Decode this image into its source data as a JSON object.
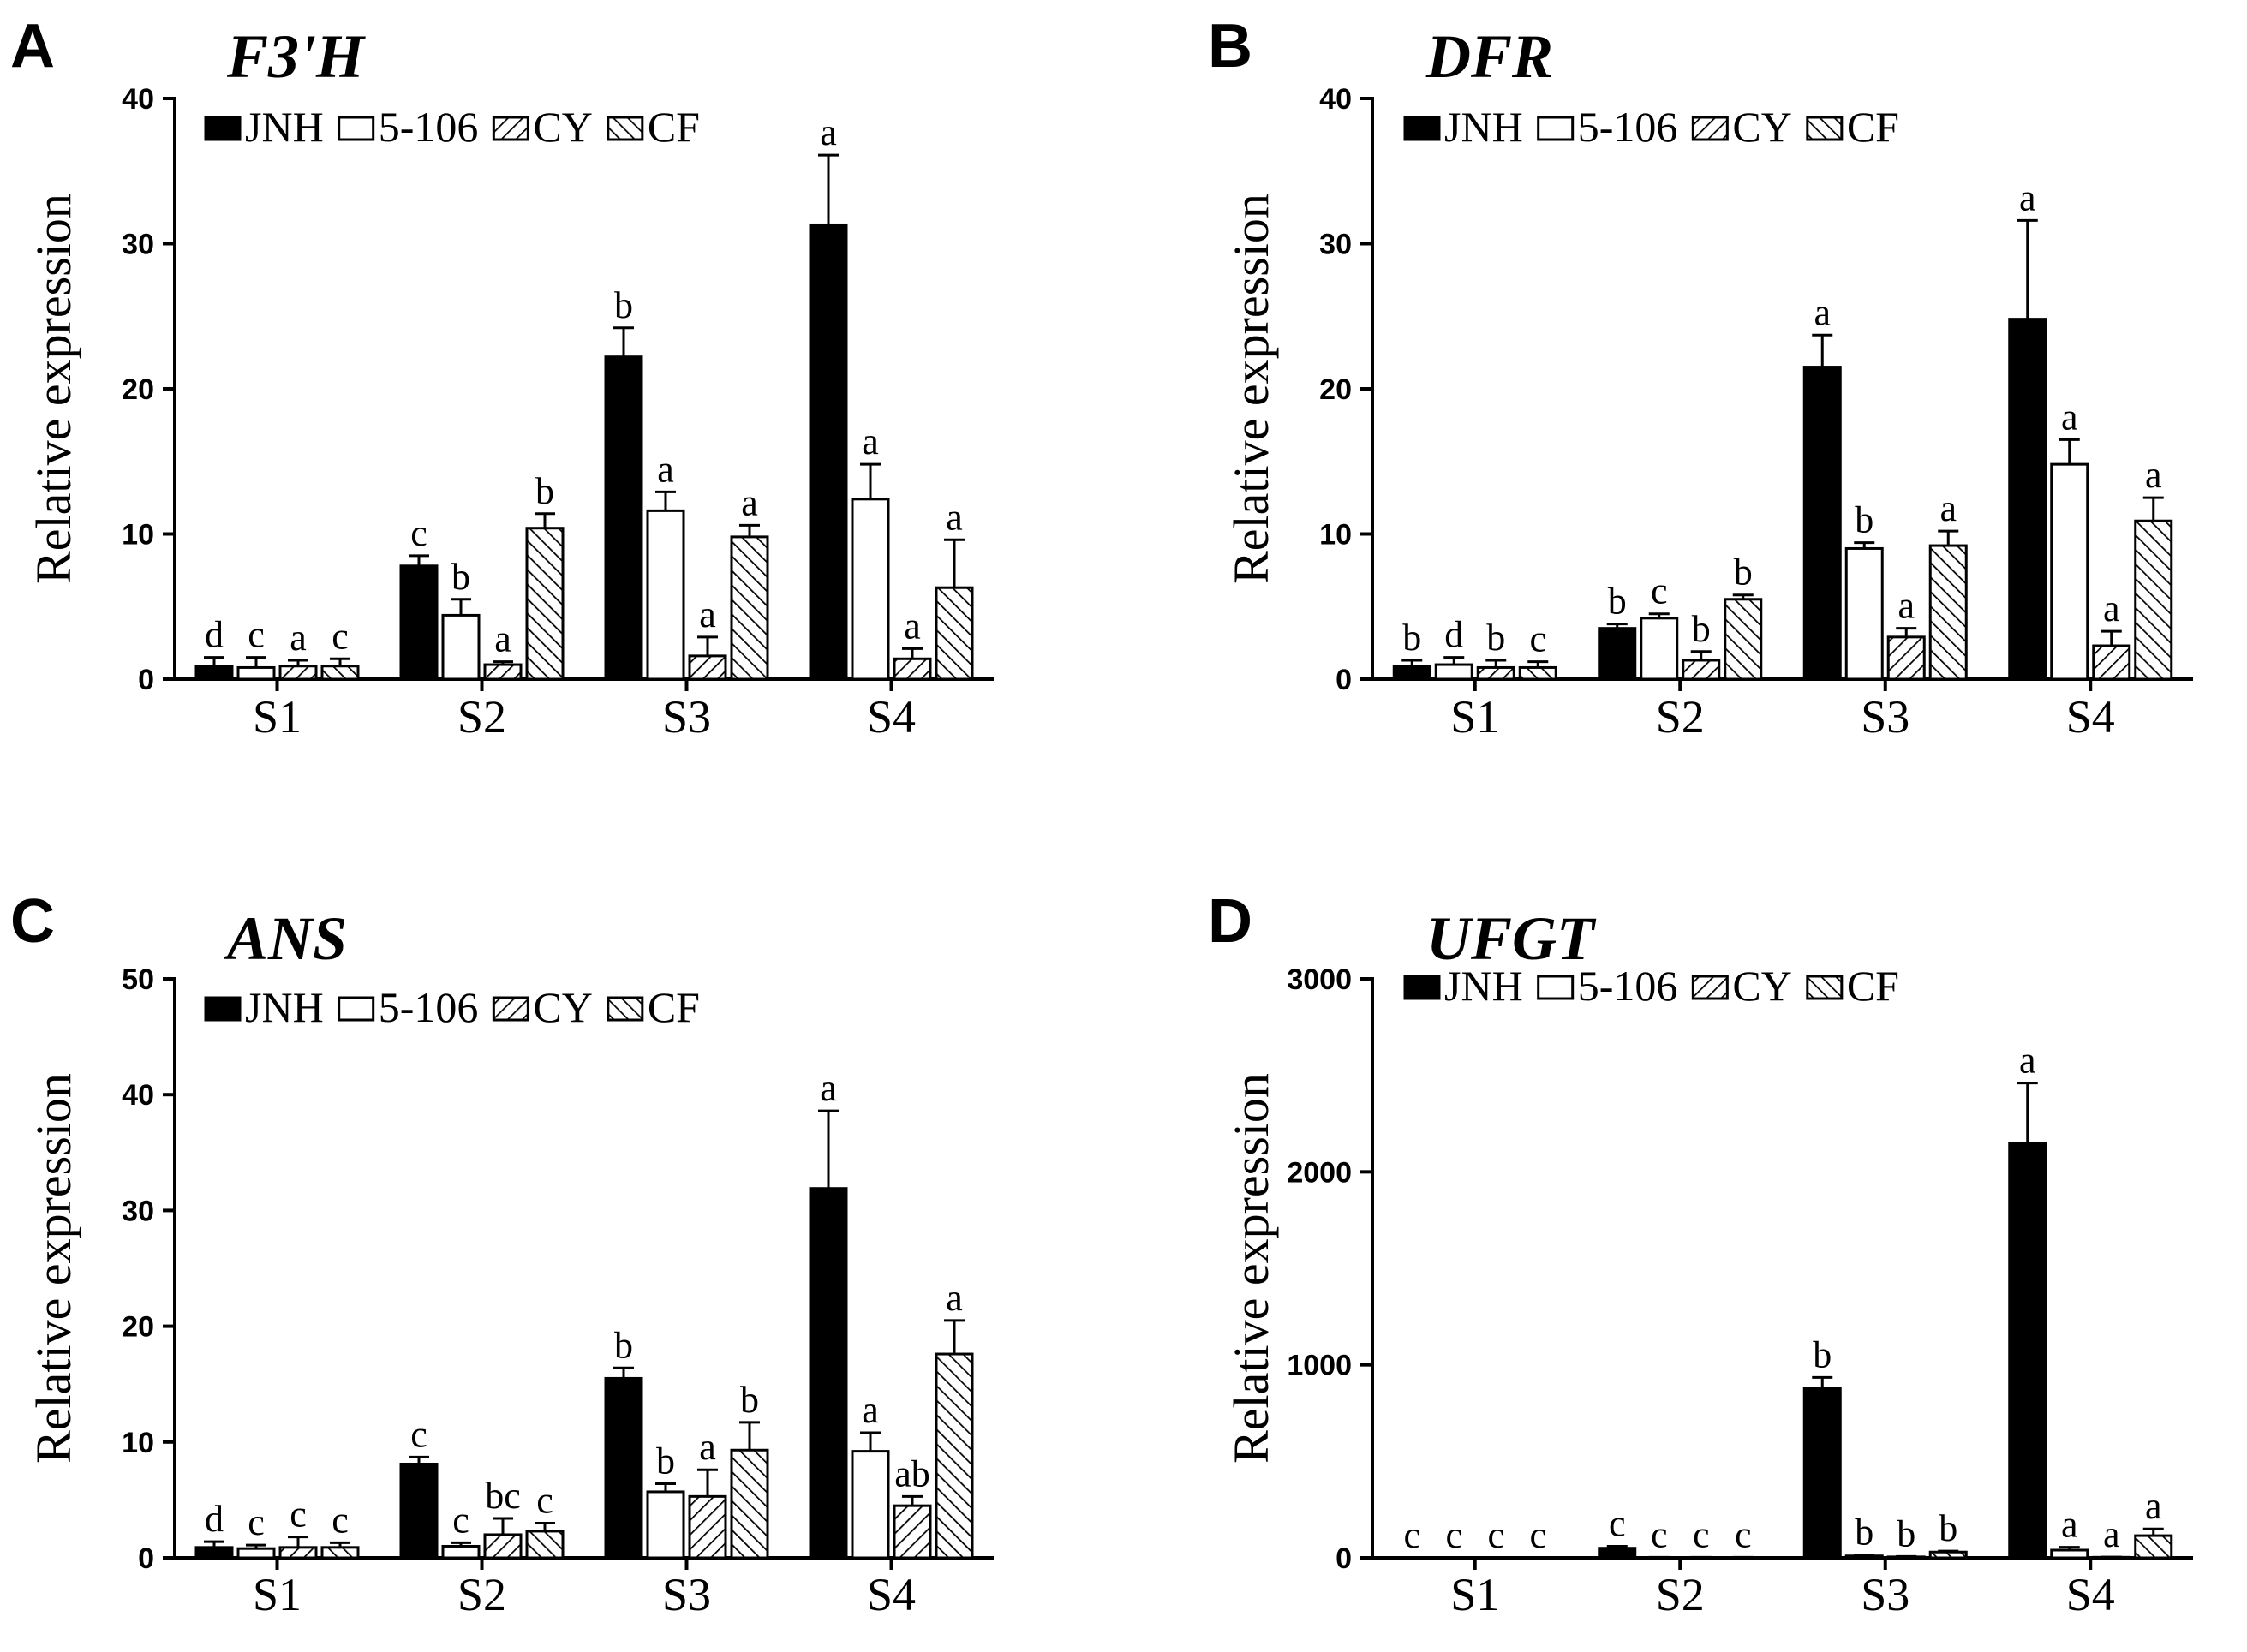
{
  "chart_data": [
    {
      "type": "bar",
      "panel": "A",
      "title": "F3'H",
      "ylabel": "Relative expression",
      "xlabel": "",
      "ylim": [
        0,
        40
      ],
      "yticks": [
        0,
        10,
        20,
        30,
        40
      ],
      "ytick_labels": [
        "0",
        "10",
        "20",
        "30",
        "40"
      ],
      "legend_position": "top-left",
      "categories": [
        "S1",
        "S2",
        "S3",
        "S4"
      ],
      "series": [
        {
          "name": "JNH",
          "values": [
            0.9,
            7.8,
            22.2,
            31.3
          ],
          "errors": [
            0.6,
            0.7,
            2.0,
            4.8
          ],
          "labels": [
            "d",
            "c",
            "b",
            "a"
          ]
        },
        {
          "name": "5-106",
          "values": [
            0.8,
            4.4,
            11.6,
            12.4
          ],
          "errors": [
            0.7,
            1.1,
            1.3,
            2.4
          ],
          "labels": [
            "c",
            "b",
            "a",
            "a"
          ]
        },
        {
          "name": "CY",
          "values": [
            0.9,
            1.0,
            1.6,
            1.4
          ],
          "errors": [
            0.4,
            0.2,
            1.3,
            0.7
          ],
          "labels": [
            "a",
            "a",
            "a",
            "a"
          ]
        },
        {
          "name": "CF",
          "values": [
            0.9,
            10.4,
            9.8,
            6.3
          ],
          "errors": [
            0.5,
            1.0,
            0.8,
            3.3
          ],
          "labels": [
            "c",
            "b",
            "a",
            "a"
          ]
        }
      ]
    },
    {
      "type": "bar",
      "panel": "B",
      "title": "DFR",
      "ylabel": "Relative expression",
      "xlabel": "",
      "ylim": [
        0,
        40
      ],
      "yticks": [
        0,
        10,
        20,
        30,
        40
      ],
      "ytick_labels": [
        "0",
        "10",
        "20",
        "30",
        "40"
      ],
      "legend_position": "top-left",
      "categories": [
        "S1",
        "S2",
        "S3",
        "S4"
      ],
      "series": [
        {
          "name": "JNH",
          "values": [
            0.9,
            3.5,
            21.5,
            24.8
          ],
          "errors": [
            0.4,
            0.3,
            2.2,
            6.8
          ],
          "labels": [
            "b",
            "b",
            "a",
            "a"
          ]
        },
        {
          "name": "5-106",
          "values": [
            1.0,
            4.2,
            9.0,
            14.8
          ],
          "errors": [
            0.5,
            0.3,
            0.4,
            1.7
          ],
          "labels": [
            "d",
            "c",
            "b",
            "a"
          ]
        },
        {
          "name": "CY",
          "values": [
            0.8,
            1.3,
            2.9,
            2.3
          ],
          "errors": [
            0.5,
            0.6,
            0.6,
            1.0
          ],
          "labels": [
            "b",
            "b",
            "a",
            "a"
          ]
        },
        {
          "name": "CF",
          "values": [
            0.8,
            5.5,
            9.2,
            10.9
          ],
          "errors": [
            0.4,
            0.3,
            1.0,
            1.6
          ],
          "labels": [
            "c",
            "b",
            "a",
            "a"
          ]
        }
      ]
    },
    {
      "type": "bar",
      "panel": "C",
      "title": "ANS",
      "ylabel": "Relative expression",
      "xlabel": "",
      "ylim": [
        0,
        50
      ],
      "yticks": [
        0,
        10,
        20,
        30,
        40,
        50
      ],
      "ytick_labels": [
        "0",
        "10",
        "20",
        "30",
        "40",
        "50"
      ],
      "legend_position": "top-left",
      "categories": [
        "S1",
        "S2",
        "S3",
        "S4"
      ],
      "series": [
        {
          "name": "JNH",
          "values": [
            0.9,
            8.1,
            15.5,
            31.9
          ],
          "errors": [
            0.5,
            0.6,
            0.9,
            6.7
          ],
          "labels": [
            "d",
            "c",
            "b",
            "a"
          ]
        },
        {
          "name": "5-106",
          "values": [
            0.8,
            1.0,
            5.7,
            9.2
          ],
          "errors": [
            0.3,
            0.3,
            0.7,
            1.6
          ],
          "labels": [
            "c",
            "c",
            "b",
            "a"
          ]
        },
        {
          "name": "CY",
          "values": [
            0.9,
            2.0,
            5.3,
            4.5
          ],
          "errors": [
            0.9,
            1.4,
            2.3,
            0.8
          ],
          "labels": [
            "c",
            "bc",
            "a",
            "ab"
          ]
        },
        {
          "name": "CF",
          "values": [
            0.9,
            2.3,
            9.3,
            17.6
          ],
          "errors": [
            0.4,
            0.7,
            2.4,
            2.9
          ],
          "labels": [
            "c",
            "c",
            "b",
            "a"
          ]
        }
      ]
    },
    {
      "type": "bar",
      "panel": "D",
      "title": "UFGT",
      "ylabel": "Relative expression",
      "xlabel": "",
      "ylim": [
        0,
        3000
      ],
      "yticks": [
        0,
        1000,
        2000,
        3000
      ],
      "ytick_labels": [
        "0",
        "1000",
        "2000",
        "3000"
      ],
      "legend_position": "top-left",
      "categories": [
        "S1",
        "S2",
        "S3",
        "S4"
      ],
      "series": [
        {
          "name": "JNH",
          "values": [
            1,
            50,
            880,
            2150
          ],
          "errors": [
            0,
            10,
            55,
            310
          ],
          "labels": [
            "c",
            "c",
            "b",
            "a"
          ]
        },
        {
          "name": "5-106",
          "values": [
            1,
            2,
            10,
            40
          ],
          "errors": [
            0,
            1,
            5,
            15
          ],
          "labels": [
            "c",
            "c",
            "b",
            "a"
          ]
        },
        {
          "name": "CY",
          "values": [
            1,
            2,
            5,
            3
          ],
          "errors": [
            0,
            1,
            2,
            1
          ],
          "labels": [
            "c",
            "c",
            "b",
            "a"
          ]
        },
        {
          "name": "CF",
          "values": [
            1,
            2,
            30,
            115
          ],
          "errors": [
            0,
            1,
            5,
            35
          ],
          "labels": [
            "c",
            "c",
            "b",
            "a"
          ]
        }
      ]
    }
  ],
  "colors": {
    "JNH": "#000000",
    "5-106": "#ffffff",
    "CY": "#ffffff",
    "CF": "#ffffff",
    "stroke": "#000000"
  }
}
